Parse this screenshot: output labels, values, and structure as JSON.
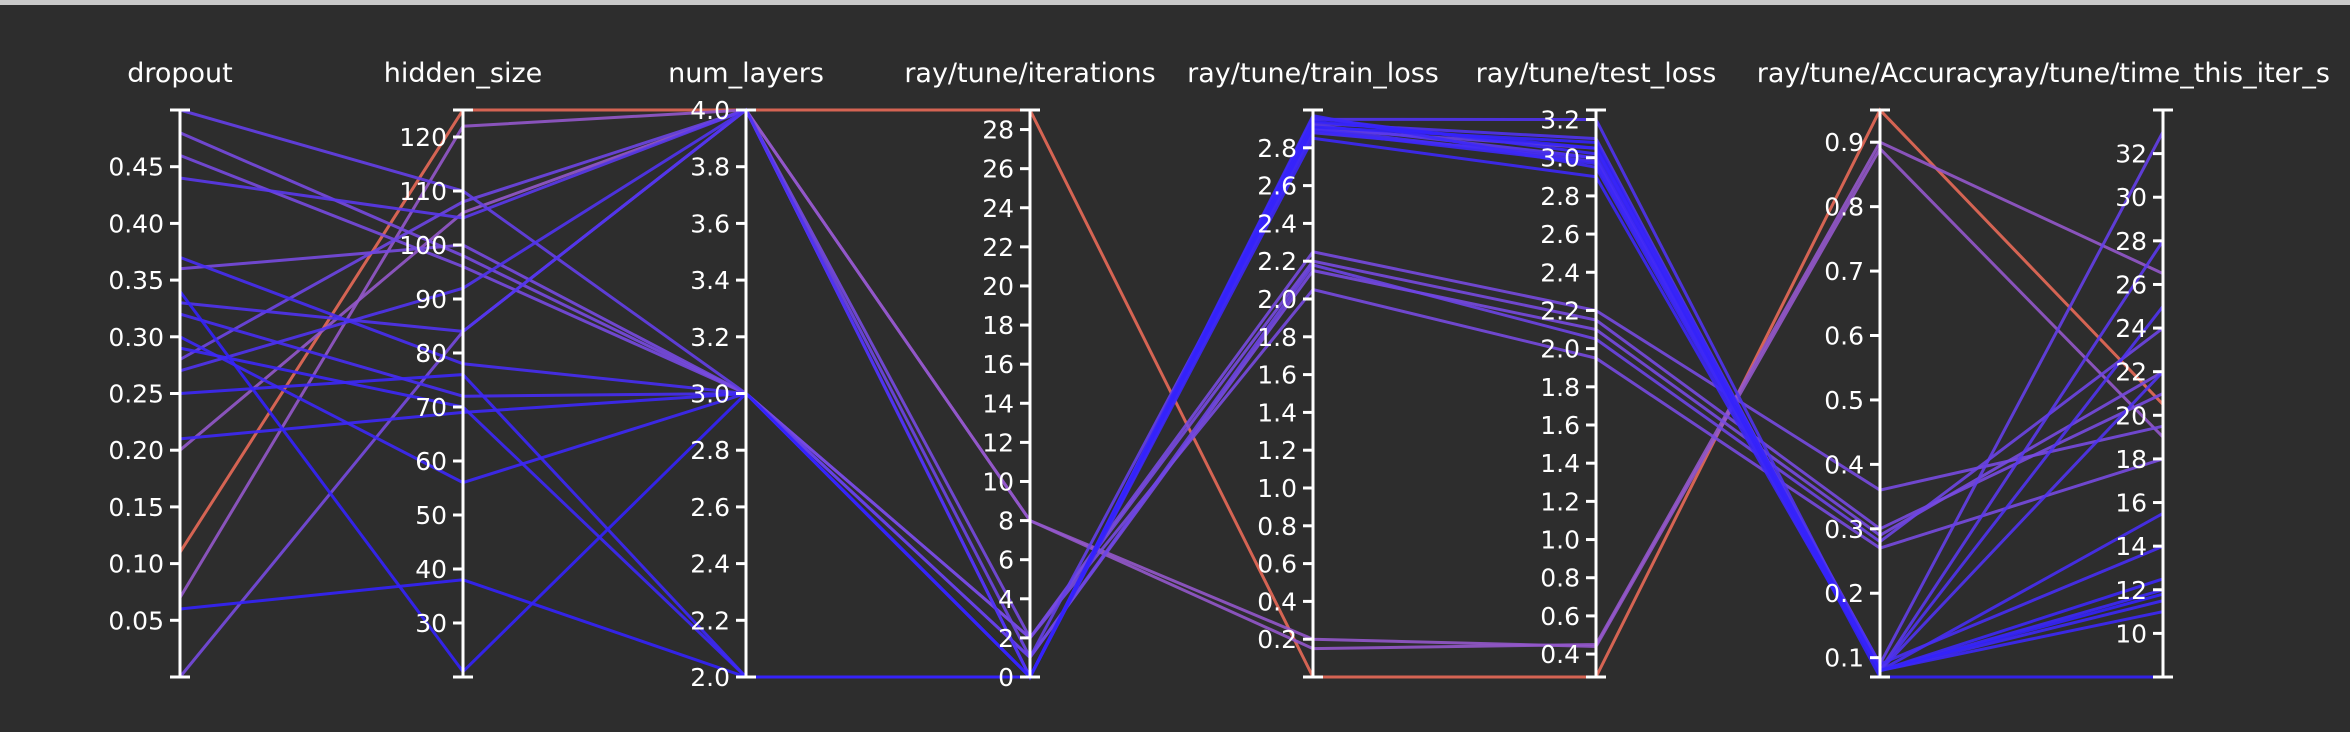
{
  "chart_data": {
    "type": "parallel_coordinates",
    "axes": [
      {
        "key": "dropout",
        "label": "dropout",
        "range": [
          0.0,
          0.5
        ],
        "ticks": [
          "0.05",
          "0.10",
          "0.15",
          "0.20",
          "0.25",
          "0.30",
          "0.35",
          "0.40",
          "0.45"
        ]
      },
      {
        "key": "hidden_size",
        "label": "hidden_size",
        "range": [
          20,
          125
        ],
        "ticks": [
          "30",
          "40",
          "50",
          "60",
          "70",
          "80",
          "90",
          "100",
          "110",
          "120"
        ]
      },
      {
        "key": "num_layers",
        "label": "num_layers",
        "range": [
          2.0,
          4.0
        ],
        "ticks": [
          "2.0",
          "2.2",
          "2.4",
          "2.6",
          "2.8",
          "3.0",
          "3.2",
          "3.4",
          "3.6",
          "3.8",
          "4.0"
        ]
      },
      {
        "key": "iterations",
        "label": "ray/tune/iterations",
        "range": [
          0,
          29
        ],
        "ticks": [
          "0",
          "2",
          "4",
          "6",
          "8",
          "10",
          "12",
          "14",
          "16",
          "18",
          "20",
          "22",
          "24",
          "26",
          "28"
        ]
      },
      {
        "key": "train_loss",
        "label": "ray/tune/train_loss",
        "range": [
          0.0,
          3.0
        ],
        "ticks": [
          "0.2",
          "0.4",
          "0.6",
          "0.8",
          "1.0",
          "1.2",
          "1.4",
          "1.6",
          "1.8",
          "2.0",
          "2.2",
          "2.4",
          "2.6",
          "2.8"
        ]
      },
      {
        "key": "test_loss",
        "label": "ray/tune/test_loss",
        "range": [
          0.28,
          3.25
        ],
        "ticks": [
          "0.4",
          "0.6",
          "0.8",
          "1.0",
          "1.2",
          "1.4",
          "1.6",
          "1.8",
          "2.0",
          "2.2",
          "2.4",
          "2.6",
          "2.8",
          "3.0",
          "3.2"
        ]
      },
      {
        "key": "accuracy",
        "label": "ray/tune/Accuracy",
        "range": [
          0.07,
          0.95
        ],
        "ticks": [
          "0.1",
          "0.2",
          "0.3",
          "0.4",
          "0.5",
          "0.6",
          "0.7",
          "0.8",
          "0.9"
        ]
      },
      {
        "key": "time_this_iter_s",
        "label": "ray/tune/time_this_iter_s",
        "range": [
          8,
          34
        ],
        "ticks": [
          "10",
          "12",
          "14",
          "16",
          "18",
          "20",
          "22",
          "24",
          "26",
          "28",
          "30",
          "32"
        ]
      }
    ],
    "color_scale": {
      "low": "#2a1cff",
      "mid": "#8a56d8",
      "high": "#e86a58"
    },
    "runs": [
      {
        "color_value": 1.0,
        "values": [
          0.11,
          125,
          4.0,
          29,
          0.0,
          0.28,
          0.95,
          20.5
        ]
      },
      {
        "color_value": 0.55,
        "values": [
          0.07,
          122,
          4.0,
          8,
          0.15,
          0.45,
          0.9,
          26.5
        ]
      },
      {
        "color_value": 0.55,
        "values": [
          0.2,
          106,
          4.0,
          8,
          0.2,
          0.44,
          0.89,
          19.0
        ]
      },
      {
        "color_value": 0.4,
        "values": [
          0.48,
          98,
          3.0,
          2,
          2.25,
          2.2,
          0.36,
          19.5
        ]
      },
      {
        "color_value": 0.4,
        "values": [
          0.46,
          96,
          3.0,
          2,
          2.2,
          2.15,
          0.3,
          21.0
        ]
      },
      {
        "color_value": 0.4,
        "values": [
          0.36,
          100,
          3.0,
          1,
          2.15,
          2.1,
          0.29,
          22.0
        ]
      },
      {
        "color_value": 0.4,
        "values": [
          0.0,
          84,
          4.0,
          2,
          2.05,
          1.95,
          0.27,
          18.0
        ]
      },
      {
        "color_value": 0.35,
        "values": [
          0.28,
          108,
          4.0,
          1,
          2.18,
          2.05,
          0.28,
          24.0
        ]
      },
      {
        "color_value": 0.3,
        "values": [
          0.5,
          110,
          3.0,
          1,
          2.9,
          3.05,
          0.09,
          33.0
        ]
      },
      {
        "color_value": 0.25,
        "values": [
          0.44,
          105,
          4.0,
          0,
          2.92,
          3.0,
          0.08,
          28.0
        ]
      },
      {
        "color_value": 0.2,
        "values": [
          0.27,
          92,
          4.0,
          0,
          2.95,
          3.2,
          0.08,
          25.0
        ]
      },
      {
        "color_value": 0.2,
        "values": [
          0.33,
          84,
          4.0,
          0,
          2.93,
          3.1,
          0.08,
          22.0
        ]
      },
      {
        "color_value": 0.15,
        "values": [
          0.37,
          78,
          3.0,
          0,
          2.88,
          3.0,
          0.08,
          15.5
        ]
      },
      {
        "color_value": 0.15,
        "values": [
          0.32,
          72,
          3.0,
          0,
          2.9,
          2.98,
          0.09,
          14.0
        ]
      },
      {
        "color_value": 0.1,
        "values": [
          0.29,
          70,
          2.0,
          0,
          2.96,
          3.02,
          0.08,
          12.0
        ]
      },
      {
        "color_value": 0.1,
        "values": [
          0.25,
          76,
          2.0,
          0,
          2.97,
          2.95,
          0.08,
          12.5
        ]
      },
      {
        "color_value": 0.1,
        "values": [
          0.3,
          56,
          3.0,
          0,
          2.85,
          2.9,
          0.08,
          11.5
        ]
      },
      {
        "color_value": 0.1,
        "values": [
          0.21,
          69,
          3.0,
          0,
          2.89,
          2.97,
          0.08,
          11.0
        ]
      },
      {
        "color_value": 0.05,
        "values": [
          0.06,
          38,
          2.0,
          0,
          2.94,
          3.05,
          0.07,
          8.0
        ]
      },
      {
        "color_value": 0.05,
        "values": [
          0.34,
          21,
          3.0,
          0,
          2.91,
          3.08,
          0.08,
          11.8
        ]
      }
    ]
  }
}
